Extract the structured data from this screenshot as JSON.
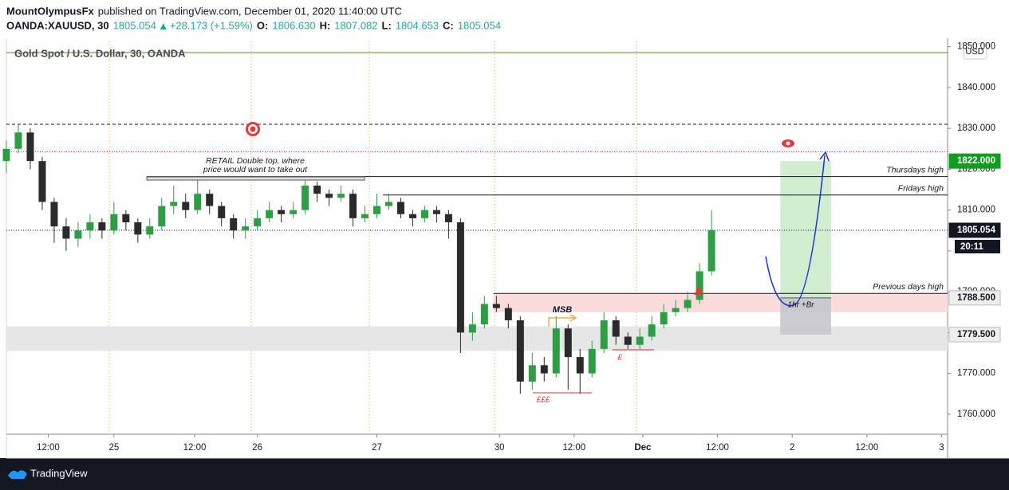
{
  "header": {
    "user": "MountOlympusFx",
    "published": "published on TradingView.com, December 01, 2020 11:40:00 UTC",
    "symbol": "OANDA:XAUUSD, 30",
    "last": "1805.054",
    "change": "+28.173 (+1.59%)",
    "ohlc": [
      {
        "label": "O:",
        "value": "1806.630"
      },
      {
        "label": "H:",
        "value": "1807.082"
      },
      {
        "label": "L:",
        "value": "1804.653"
      },
      {
        "label": "C:",
        "value": "1805.054"
      }
    ]
  },
  "chart_data": {
    "type": "candlestick",
    "title": "Gold Spot / U.S. Dollar, 30, OANDA",
    "currency": "USD",
    "up_color": "#2e9e46",
    "down_color": "#2b2b2b",
    "x": [
      0,
      4,
      8,
      12,
      16,
      20,
      24,
      28,
      32,
      36,
      40,
      44,
      48,
      52,
      56,
      60,
      64,
      68,
      72,
      76,
      80,
      84,
      88,
      92,
      96,
      100,
      104,
      108,
      112,
      116,
      120,
      124,
      128,
      132,
      136,
      140,
      144,
      148,
      152,
      156,
      160,
      164,
      168,
      172,
      176,
      180,
      184,
      188,
      192,
      196,
      200,
      204,
      208,
      212,
      216,
      220,
      224,
      228,
      232,
      236
    ],
    "open": [
      1822,
      1825,
      1829,
      1822,
      1812,
      1806,
      1803,
      1805,
      1807,
      1805,
      1809,
      1807,
      1804,
      1806,
      1811,
      1812,
      1810,
      1814,
      1811,
      1808,
      1805,
      1806,
      1808,
      1810,
      1809,
      1810,
      1816,
      1814,
      1813,
      1814,
      1808,
      1809,
      1811,
      1812,
      1809,
      1808,
      1810,
      1809,
      1807,
      1780,
      1782,
      1787,
      1786,
      1783,
      1768,
      1772,
      1770,
      1781,
      1774,
      1770,
      1776,
      1783,
      1779,
      1777,
      1779,
      1782,
      1785,
      1786,
      1788,
      1795
    ],
    "high": [
      1827,
      1831,
      1830,
      1823,
      1813,
      1808,
      1807,
      1809,
      1808,
      1812,
      1810,
      1808,
      1808,
      1813,
      1816,
      1814,
      1818,
      1815,
      1812,
      1809,
      1808,
      1810,
      1812,
      1811,
      1812,
      1818,
      1817,
      1815,
      1816,
      1815,
      1811,
      1814,
      1814,
      1813,
      1810,
      1811,
      1811,
      1810,
      1808,
      1785,
      1789,
      1789,
      1787,
      1784,
      1775,
      1774,
      1784,
      1782,
      1776,
      1778,
      1785,
      1784,
      1780,
      1781,
      1784,
      1787,
      1788,
      1790,
      1797,
      1810
    ],
    "low": [
      1819,
      1824,
      1820,
      1810,
      1802,
      1800,
      1801,
      1803,
      1803,
      1804,
      1805,
      1802,
      1803,
      1805,
      1809,
      1808,
      1809,
      1809,
      1806,
      1803,
      1803,
      1805,
      1807,
      1807,
      1808,
      1809,
      1812,
      1811,
      1812,
      1806,
      1807,
      1808,
      1810,
      1808,
      1806,
      1807,
      1807,
      1803,
      1775,
      1778,
      1781,
      1785,
      1781,
      1765,
      1766,
      1768,
      1769,
      1766,
      1765,
      1769,
      1775,
      1777,
      1776,
      1776,
      1778,
      1781,
      1784,
      1785,
      1787,
      1794
    ],
    "close": [
      1825,
      1829,
      1822,
      1812,
      1806,
      1803,
      1805,
      1807,
      1805,
      1809,
      1807,
      1804,
      1806,
      1811,
      1812,
      1810,
      1814,
      1811,
      1808,
      1805,
      1806,
      1808,
      1810,
      1809,
      1810,
      1816,
      1814,
      1813,
      1814,
      1808,
      1809,
      1811,
      1812,
      1809,
      1808,
      1810,
      1809,
      1807,
      1780,
      1782,
      1787,
      1786,
      1783,
      1768,
      1772,
      1770,
      1781,
      1774,
      1770,
      1776,
      1783,
      1779,
      1777,
      1779,
      1782,
      1785,
      1786,
      1788,
      1795,
      1805.054
    ],
    "countdown": "20:11",
    "xlim": [
      0,
      315
    ],
    "xticks": [
      {
        "value": 14,
        "label": "12:00"
      },
      {
        "value": 36,
        "label": "25"
      },
      {
        "value": 63,
        "label": "12:00"
      },
      {
        "value": 84,
        "label": "26"
      },
      {
        "value": 124,
        "label": "27"
      },
      {
        "value": 165,
        "label": "30"
      },
      {
        "value": 190,
        "label": "12:00"
      },
      {
        "value": 213,
        "label": "Dec"
      },
      {
        "value": 238,
        "label": "12:00"
      },
      {
        "value": 263,
        "label": "2"
      },
      {
        "value": 288,
        "label": "12:00"
      },
      {
        "value": 313,
        "label": "3"
      }
    ],
    "ylim": [
      1755.1,
      1851.3
    ],
    "yticks": [
      {
        "value": 1850,
        "label": "1850.000"
      },
      {
        "value": 1840,
        "label": "1840.000"
      },
      {
        "value": 1830,
        "label": "1830.000"
      },
      {
        "value": 1820,
        "label": "1820.000"
      },
      {
        "value": 1810,
        "label": "1810.000"
      },
      {
        "value": 1800,
        "label": "1800.000"
      },
      {
        "value": 1790,
        "label": "1790.000"
      },
      {
        "value": 1780,
        "label": "1780.000"
      },
      {
        "value": 1770,
        "label": "1770.000"
      },
      {
        "value": 1760,
        "label": "1760.000"
      }
    ],
    "lines": [
      {
        "value": 1831,
        "color": "#131722",
        "style": "dashed"
      },
      {
        "value": 1824.3,
        "color": "#e53935",
        "style": "dotted"
      }
    ],
    "levels": [
      {
        "label": "Thursdays high",
        "value": 1818.2,
        "from": 47
      },
      {
        "label": "Fridays high",
        "value": 1813.7,
        "from": 126
      },
      {
        "label": "Previous days high",
        "value": 1789.6,
        "from": 163
      }
    ],
    "zones": [
      {
        "top": 1789.5,
        "bottom": 1785,
        "from": 163,
        "color": "#fbdcdc"
      },
      {
        "top": 1781.5,
        "bottom": 1775.5,
        "from": 0,
        "color": "#e6e6e6"
      }
    ],
    "position": {
      "from": 259,
      "to": 276,
      "label": "1hr +Br",
      "target": {
        "value": 1822,
        "label": "1822.000"
      },
      "entry": {
        "value": 1788.5,
        "label": "1788.500"
      },
      "stop": {
        "value": 1779.5,
        "label": "1779.500"
      }
    },
    "annotations": {
      "retail": [
        "RETAIL Double top, where",
        "price would want to take out"
      ],
      "msb": "MSB",
      "lows": "£££",
      "low": "£"
    }
  },
  "footer": {
    "brand": "TradingView"
  }
}
